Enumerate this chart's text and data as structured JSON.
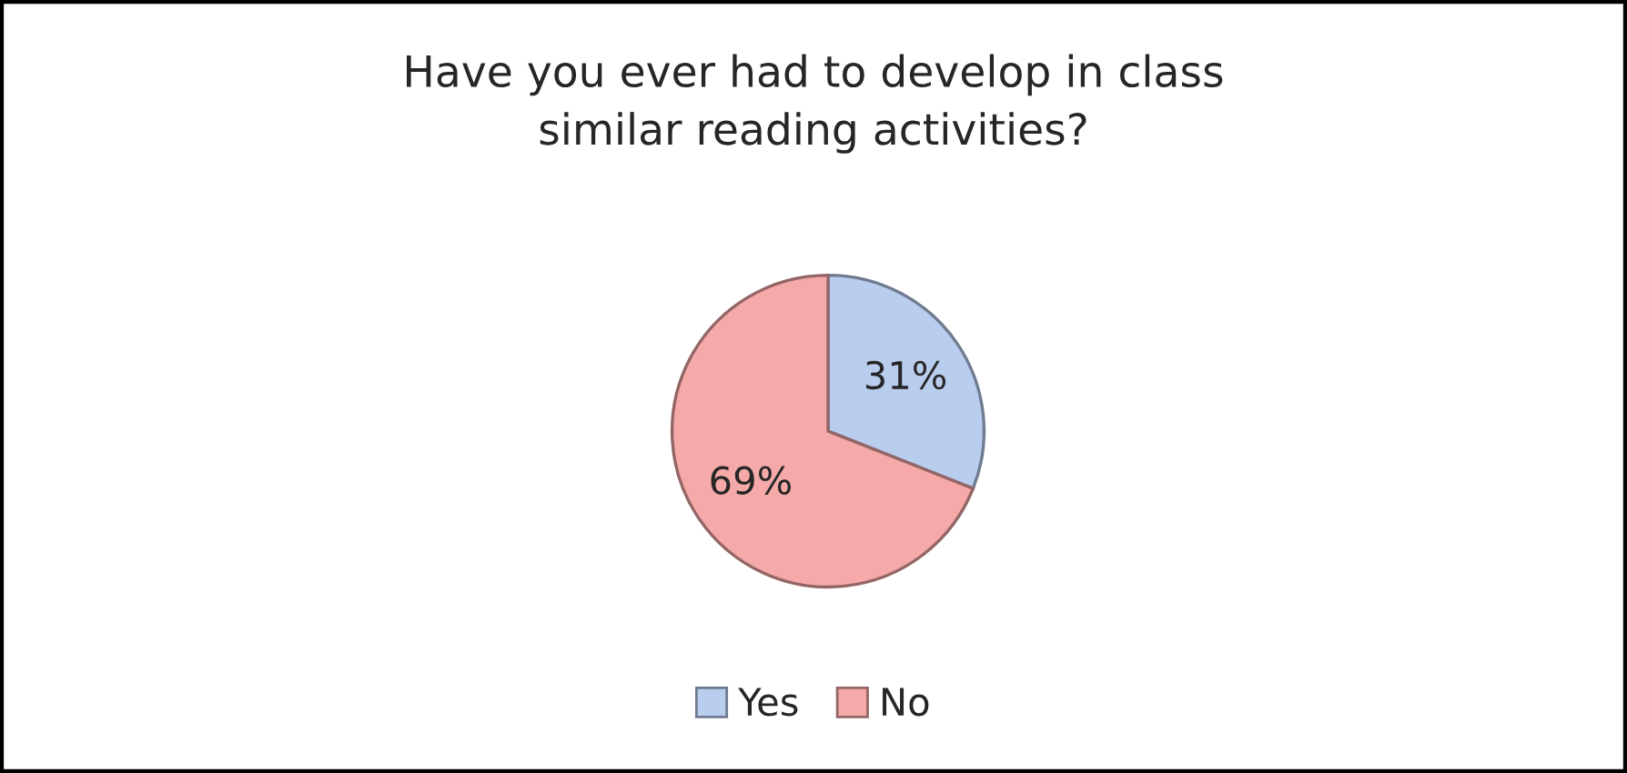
{
  "chart_data": {
    "type": "pie",
    "title": "Have you ever had to develop in class\nsimilar reading activities?",
    "categories": [
      "Yes",
      "No"
    ],
    "values": [
      31,
      69
    ],
    "colors": [
      "#b9cdef",
      "#f5a9a8"
    ],
    "value_labels": [
      "31%",
      "69%"
    ],
    "legend": "bottom"
  }
}
